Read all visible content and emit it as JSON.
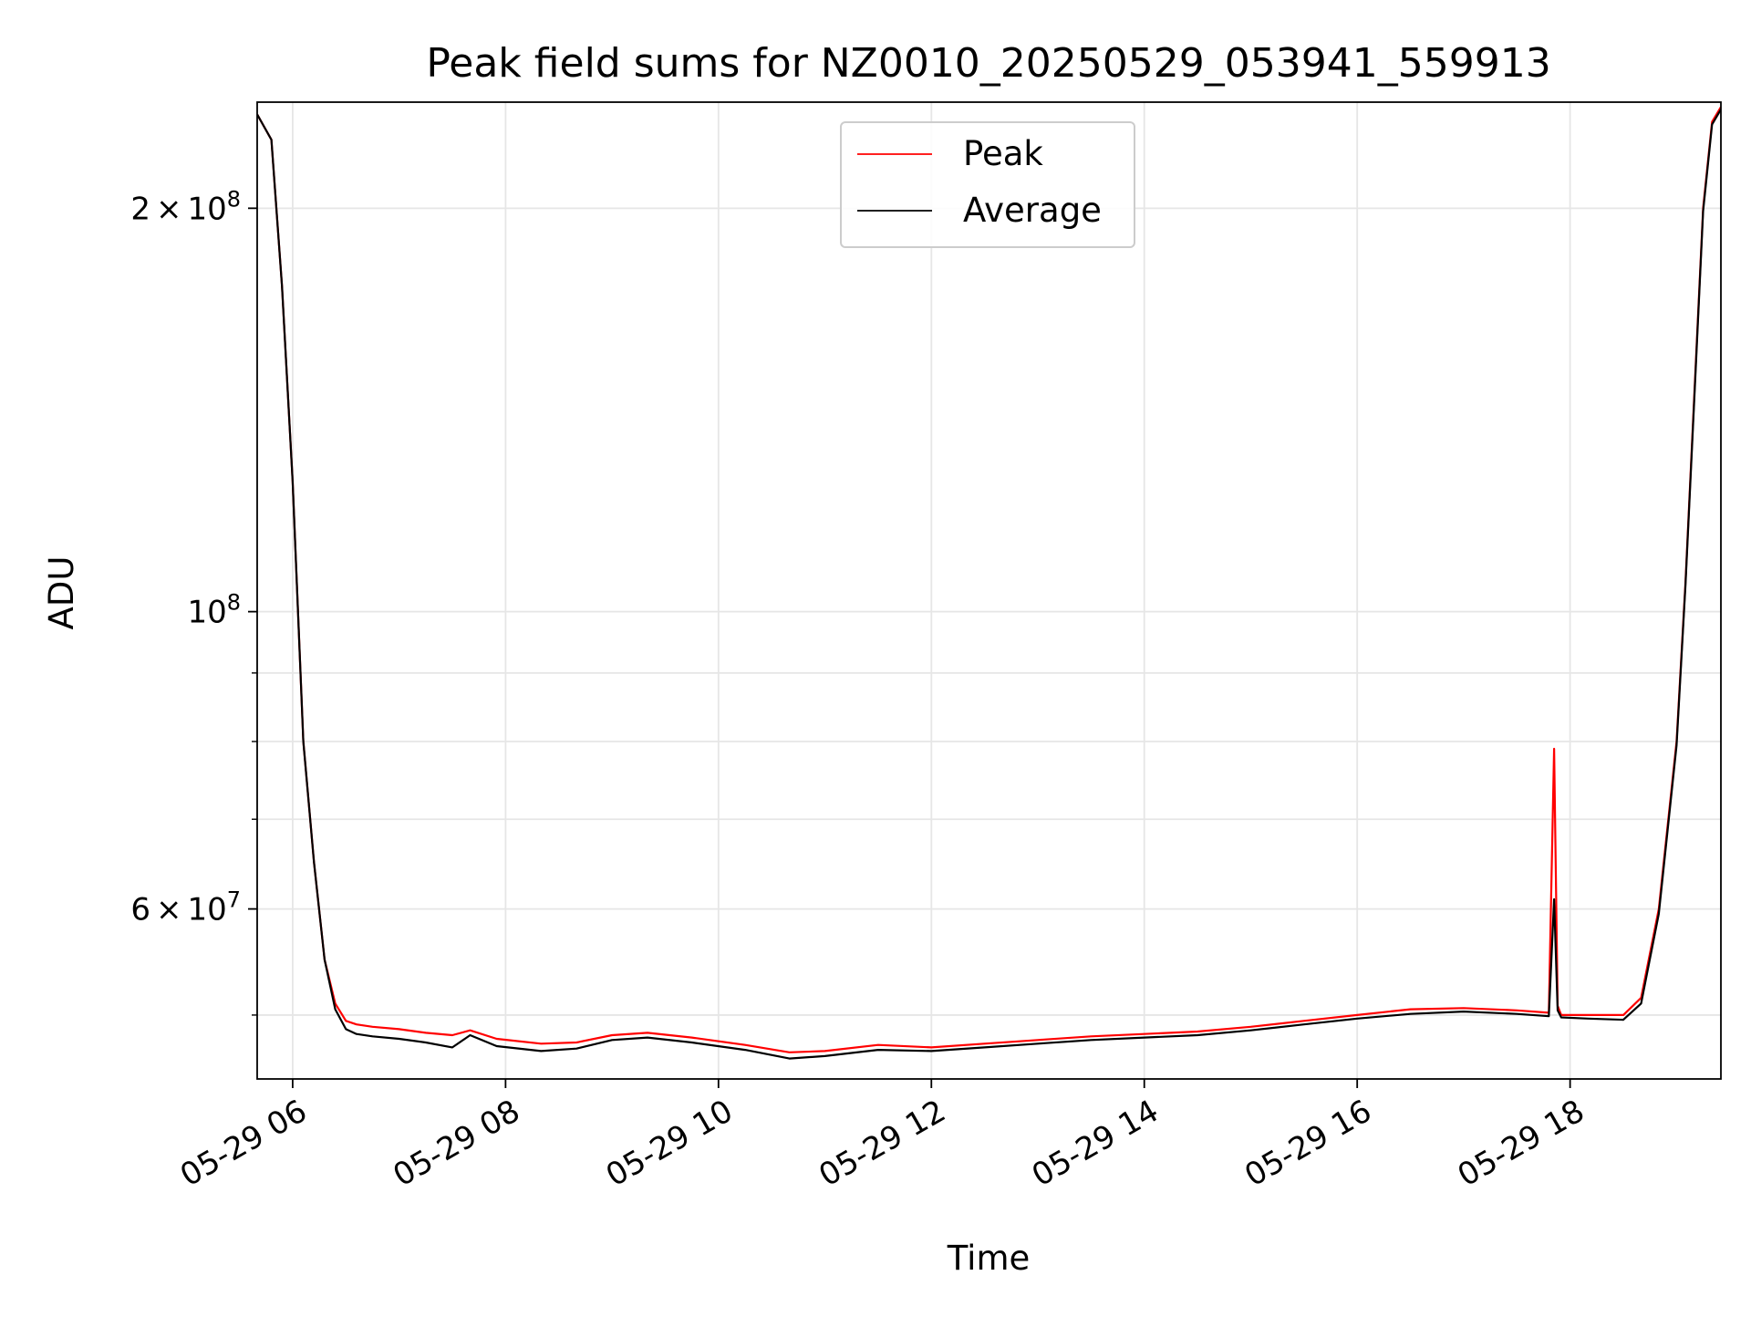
{
  "chart_data": {
    "type": "line",
    "title": "Peak field sums for NZ0010_20250529_053941_559913",
    "xlabel": "Time",
    "ylabel": "ADU",
    "yscale": "log",
    "xlim": [
      "2025-05-29 05:40",
      "2025-05-29 19:25"
    ],
    "ylim": [
      44800000,
      240000000
    ],
    "grid": true,
    "legend_position": "upper center",
    "x_ticks": [
      {
        "value": "2025-05-29 06:00",
        "label": "05-29 06"
      },
      {
        "value": "2025-05-29 08:00",
        "label": "05-29 08"
      },
      {
        "value": "2025-05-29 10:00",
        "label": "05-29 10"
      },
      {
        "value": "2025-05-29 12:00",
        "label": "05-29 12"
      },
      {
        "value": "2025-05-29 14:00",
        "label": "05-29 14"
      },
      {
        "value": "2025-05-29 16:00",
        "label": "05-29 16"
      },
      {
        "value": "2025-05-29 18:00",
        "label": "05-29 18"
      }
    ],
    "y_ticks": [
      {
        "value": 60000000,
        "base": "6",
        "exp": "7"
      },
      {
        "value": 100000000,
        "base": "",
        "exp": "8"
      },
      {
        "value": 200000000,
        "base": "2",
        "exp": "8"
      }
    ],
    "y_minor_ticks": [
      50000000,
      70000000,
      80000000,
      90000000,
      300000000
    ],
    "series": [
      {
        "name": "Peak",
        "color": "#ff0000",
        "x": [
          "2025-05-29 05:40",
          "2025-05-29 05:48",
          "2025-05-29 05:54",
          "2025-05-29 06:00",
          "2025-05-29 06:06",
          "2025-05-29 06:12",
          "2025-05-29 06:18",
          "2025-05-29 06:24",
          "2025-05-29 06:30",
          "2025-05-29 06:36",
          "2025-05-29 06:45",
          "2025-05-29 07:00",
          "2025-05-29 07:15",
          "2025-05-29 07:30",
          "2025-05-29 07:40",
          "2025-05-29 07:55",
          "2025-05-29 08:20",
          "2025-05-29 08:40",
          "2025-05-29 09:00",
          "2025-05-29 09:20",
          "2025-05-29 09:45",
          "2025-05-29 10:15",
          "2025-05-29 10:40",
          "2025-05-29 11:00",
          "2025-05-29 11:30",
          "2025-05-29 12:00",
          "2025-05-29 12:30",
          "2025-05-29 13:00",
          "2025-05-29 13:30",
          "2025-05-29 14:00",
          "2025-05-29 14:30",
          "2025-05-29 15:00",
          "2025-05-29 15:30",
          "2025-05-29 16:00",
          "2025-05-29 16:30",
          "2025-05-29 17:00",
          "2025-05-29 17:30",
          "2025-05-29 17:48",
          "2025-05-29 17:51",
          "2025-05-29 17:53",
          "2025-05-29 17:55",
          "2025-05-29 18:10",
          "2025-05-29 18:30",
          "2025-05-29 18:40",
          "2025-05-29 18:50",
          "2025-05-29 19:00",
          "2025-05-29 19:05",
          "2025-05-29 19:10",
          "2025-05-29 19:15",
          "2025-05-29 19:20",
          "2025-05-29 19:25"
        ],
        "y": [
          235000000,
          225000000,
          175000000,
          125000000,
          80000000,
          65000000,
          55000000,
          51000000,
          49500000,
          49200000,
          49000000,
          48800000,
          48500000,
          48300000,
          48700000,
          48000000,
          47600000,
          47700000,
          48300000,
          48500000,
          48100000,
          47500000,
          46900000,
          47000000,
          47500000,
          47300000,
          47600000,
          47900000,
          48200000,
          48400000,
          48600000,
          49000000,
          49500000,
          50000000,
          50500000,
          50600000,
          50400000,
          50200000,
          79000000,
          50800000,
          50000000,
          50000000,
          50000000,
          51500000,
          60000000,
          80000000,
          105000000,
          145000000,
          200000000,
          232000000,
          238000000
        ]
      },
      {
        "name": "Average",
        "color": "#000000",
        "x": [
          "2025-05-29 05:40",
          "2025-05-29 05:48",
          "2025-05-29 05:54",
          "2025-05-29 06:00",
          "2025-05-29 06:06",
          "2025-05-29 06:12",
          "2025-05-29 06:18",
          "2025-05-29 06:24",
          "2025-05-29 06:30",
          "2025-05-29 06:36",
          "2025-05-29 06:45",
          "2025-05-29 07:00",
          "2025-05-29 07:15",
          "2025-05-29 07:30",
          "2025-05-29 07:40",
          "2025-05-29 07:55",
          "2025-05-29 08:20",
          "2025-05-29 08:40",
          "2025-05-29 09:00",
          "2025-05-29 09:20",
          "2025-05-29 09:45",
          "2025-05-29 10:15",
          "2025-05-29 10:40",
          "2025-05-29 11:00",
          "2025-05-29 11:30",
          "2025-05-29 12:00",
          "2025-05-29 12:30",
          "2025-05-29 13:00",
          "2025-05-29 13:30",
          "2025-05-29 14:00",
          "2025-05-29 14:30",
          "2025-05-29 15:00",
          "2025-05-29 15:30",
          "2025-05-29 16:00",
          "2025-05-29 16:30",
          "2025-05-29 17:00",
          "2025-05-29 17:30",
          "2025-05-29 17:48",
          "2025-05-29 17:51",
          "2025-05-29 17:53",
          "2025-05-29 17:55",
          "2025-05-29 18:10",
          "2025-05-29 18:30",
          "2025-05-29 18:40",
          "2025-05-29 18:50",
          "2025-05-29 19:00",
          "2025-05-29 19:05",
          "2025-05-29 19:10",
          "2025-05-29 19:15",
          "2025-05-29 19:20",
          "2025-05-29 19:25"
        ],
        "y": [
          235000000,
          225000000,
          175000000,
          125000000,
          80000000,
          65000000,
          55000000,
          50500000,
          48800000,
          48400000,
          48200000,
          48000000,
          47700000,
          47300000,
          48300000,
          47400000,
          47000000,
          47200000,
          47900000,
          48100000,
          47700000,
          47100000,
          46400000,
          46600000,
          47100000,
          47000000,
          47300000,
          47600000,
          47900000,
          48100000,
          48300000,
          48700000,
          49200000,
          49700000,
          50100000,
          50300000,
          50100000,
          49900000,
          61000000,
          50400000,
          49800000,
          49700000,
          49600000,
          51000000,
          59500000,
          79500000,
          104500000,
          144000000,
          199000000,
          231000000,
          237000000
        ]
      }
    ]
  }
}
